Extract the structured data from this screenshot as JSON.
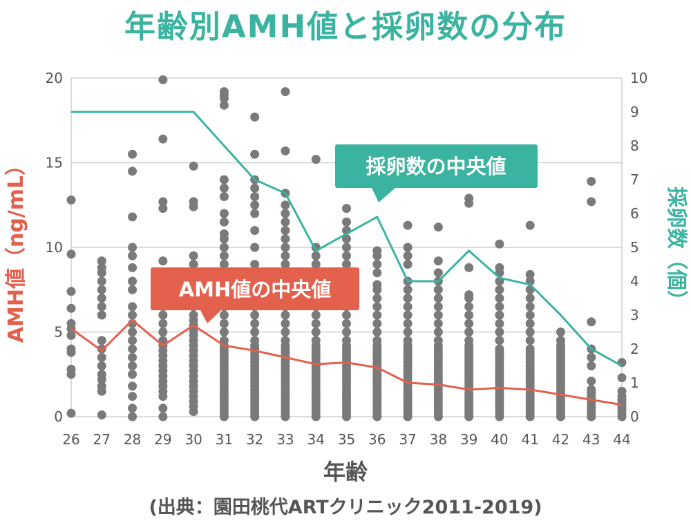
{
  "title": "年齢別AMH値と採卵数の分布",
  "source": "(出典：園田桃代ARTクリニック2011-2019)",
  "colors": {
    "title": "#3ab3a0",
    "amh": "#e3604d",
    "eggs": "#3ab3a0",
    "dots": "#7a7a7a",
    "grid": "#cfcfcf"
  },
  "chart_data": {
    "type": "scatter",
    "title": "年齢別AMH値と採卵数の分布",
    "xlabel": "年齢",
    "ylabel": "AMH値（ng/mL）",
    "y2label": "採卵数（個）",
    "x_ticks": [
      "26",
      "27",
      "28",
      "29",
      "30",
      "31",
      "32",
      "33",
      "34",
      "35",
      "36",
      "37",
      "38",
      "39",
      "40",
      "41",
      "42",
      "43",
      "44"
    ],
    "y_ticks": [
      "0",
      "5",
      "10",
      "15",
      "20"
    ],
    "y2_ticks": [
      "0",
      "1",
      "2",
      "3",
      "4",
      "5",
      "6",
      "7",
      "8",
      "9",
      "10"
    ],
    "ylim": [
      0,
      20
    ],
    "y2lim": [
      0,
      10
    ],
    "grid": true,
    "series": [
      {
        "name": "AMH値の中央値",
        "type": "line",
        "axis": "left",
        "x": [
          26,
          27,
          28,
          29,
          30,
          31,
          32,
          33,
          34,
          35,
          36,
          37,
          38,
          39,
          40,
          41,
          42,
          43,
          44
        ],
        "values": [
          5.2,
          3.9,
          5.7,
          4.2,
          5.4,
          4.2,
          3.9,
          3.5,
          3.1,
          3.2,
          2.9,
          2.0,
          1.9,
          1.6,
          1.7,
          1.6,
          1.3,
          1.0,
          0.7
        ]
      },
      {
        "name": "採卵数の中央値",
        "type": "line",
        "axis": "right",
        "x": [
          26,
          27,
          28,
          29,
          30,
          31,
          32,
          33,
          34,
          35,
          36,
          37,
          38,
          39,
          40,
          41,
          42,
          43,
          44
        ],
        "values": [
          9,
          9,
          9,
          9,
          9,
          8,
          7,
          6.6,
          4.9,
          5.4,
          5.9,
          4,
          4,
          4.9,
          4.1,
          3.9,
          3,
          2,
          1.5
        ]
      },
      {
        "name": "",
        "type": "scatter",
        "axis": "left",
        "points": [
          {
            "age": 26,
            "vals": [
              0.2,
              2.5,
              2.8,
              3.8,
              4,
              4.8,
              5.2,
              5.5,
              6.4,
              7.4,
              9.6,
              12.8
            ]
          },
          {
            "age": 27,
            "vals": [
              0.1,
              1.5,
              1.8,
              2.2,
              2.5,
              3,
              3.5,
              4,
              4.5,
              6,
              6.5,
              7,
              7.5,
              8,
              8.5,
              8.8,
              9.2
            ]
          },
          {
            "age": 28,
            "vals": [
              0,
              0.5,
              1.2,
              1.8,
              2.5,
              3,
              3.5,
              4,
              4.5,
              5,
              5.5,
              6,
              6.5,
              7.5,
              8,
              8.8,
              9.5,
              10,
              11.8,
              14.5,
              15.5
            ]
          },
          {
            "age": 29,
            "vals": [
              0,
              0.5,
              1.2,
              1.5,
              1.8,
              2.1,
              2.4,
              2.7,
              3,
              3.3,
              3.6,
              3.9,
              4.2,
              4.5,
              5,
              5.5,
              6,
              6.5,
              8,
              9.2,
              12.3,
              12.7,
              16.4,
              19.9
            ]
          },
          {
            "age": 30,
            "vals": [
              0.3,
              0.6,
              0.9,
              1.2,
              1.5,
              1.8,
              2.1,
              2.4,
              2.7,
              3,
              3.3,
              3.6,
              3.9,
              4.2,
              4.5,
              4.8,
              5.1,
              5.4,
              5.7,
              6,
              6.5,
              7,
              7.5,
              8,
              9,
              9.5,
              12.4,
              12.7,
              14.8
            ]
          },
          {
            "age": 31,
            "vals": [
              0,
              0.2,
              0.4,
              0.6,
              0.8,
              1,
              1.2,
              1.4,
              1.6,
              1.8,
              2,
              2.2,
              2.4,
              2.6,
              2.8,
              3,
              3.2,
              3.4,
              3.6,
              3.8,
              4,
              4.2,
              4.5,
              5,
              5.5,
              6,
              6.5,
              7,
              7.5,
              8,
              8.5,
              9,
              9.5,
              10,
              10.5,
              10.8,
              11.5,
              12,
              13,
              13.5,
              14,
              18.4,
              18.8,
              19,
              19.2
            ]
          },
          {
            "age": 32,
            "vals": [
              0,
              0.2,
              0.4,
              0.6,
              0.8,
              1,
              1.2,
              1.4,
              1.6,
              1.8,
              2,
              2.2,
              2.4,
              2.6,
              2.8,
              3,
              3.2,
              3.4,
              3.6,
              3.8,
              4,
              4.2,
              4.5,
              5,
              5.5,
              6,
              6.5,
              7,
              7.5,
              8,
              8.5,
              9,
              10,
              11,
              12,
              12.5,
              13,
              13.5,
              14,
              15.5,
              17.7
            ]
          },
          {
            "age": 33,
            "vals": [
              0,
              0.2,
              0.4,
              0.6,
              0.8,
              1,
              1.2,
              1.4,
              1.6,
              1.8,
              2,
              2.2,
              2.4,
              2.6,
              2.8,
              3,
              3.2,
              3.4,
              3.6,
              3.8,
              4,
              4.2,
              4.5,
              5,
              5.5,
              6,
              6.5,
              7,
              7.5,
              8,
              8.5,
              9,
              9.5,
              10,
              10.5,
              11,
              11.5,
              12,
              12.5,
              13.2,
              15.7,
              19.2
            ]
          },
          {
            "age": 34,
            "vals": [
              0,
              0.2,
              0.4,
              0.6,
              0.8,
              1,
              1.2,
              1.4,
              1.6,
              1.8,
              2,
              2.2,
              2.4,
              2.6,
              2.8,
              3,
              3.2,
              3.4,
              3.6,
              3.8,
              4,
              4.2,
              4.5,
              5,
              5.5,
              6,
              6.5,
              7,
              7.5,
              8,
              8.5,
              9,
              9.5,
              10,
              15.2
            ]
          },
          {
            "age": 35,
            "vals": [
              0,
              0.2,
              0.4,
              0.6,
              0.8,
              1,
              1.2,
              1.4,
              1.6,
              1.8,
              2,
              2.2,
              2.4,
              2.6,
              2.8,
              3,
              3.2,
              3.4,
              3.6,
              3.8,
              4,
              4.2,
              4.5,
              5,
              5.5,
              6,
              6.5,
              7,
              7.5,
              8,
              8.5,
              9,
              9.5,
              10,
              10.5,
              11,
              11.5,
              12.3
            ]
          },
          {
            "age": 36,
            "vals": [
              0,
              0.2,
              0.4,
              0.6,
              0.8,
              1,
              1.2,
              1.4,
              1.6,
              1.8,
              2,
              2.2,
              2.4,
              2.6,
              2.8,
              3,
              3.2,
              3.4,
              3.6,
              3.8,
              4,
              4.2,
              4.5,
              5,
              5.5,
              6,
              6.5,
              7,
              7.5,
              7.8,
              8.5,
              9,
              9.5,
              9.8
            ]
          },
          {
            "age": 37,
            "vals": [
              0,
              0.2,
              0.4,
              0.6,
              0.8,
              1,
              1.2,
              1.4,
              1.6,
              1.8,
              2,
              2.2,
              2.4,
              2.6,
              2.8,
              3,
              3.2,
              3.4,
              3.6,
              3.8,
              4,
              4.2,
              4.5,
              5,
              5.5,
              6,
              6.5,
              7,
              7.5,
              8,
              9,
              9.5,
              10,
              11.3
            ]
          },
          {
            "age": 38,
            "vals": [
              0,
              0.2,
              0.4,
              0.6,
              0.8,
              1,
              1.2,
              1.4,
              1.6,
              1.8,
              2,
              2.2,
              2.4,
              2.6,
              2.8,
              3,
              3.2,
              3.4,
              3.6,
              3.8,
              4,
              4.2,
              4.5,
              5,
              5.5,
              6,
              6.5,
              7,
              7.5,
              8,
              8.5,
              9.2,
              11.2
            ]
          },
          {
            "age": 39,
            "vals": [
              0,
              0.2,
              0.4,
              0.6,
              0.8,
              1,
              1.2,
              1.4,
              1.6,
              1.8,
              2,
              2.2,
              2.4,
              2.6,
              2.8,
              3,
              3.2,
              3.4,
              3.6,
              3.8,
              4,
              4.2,
              4.5,
              5,
              5.5,
              6,
              6.5,
              7,
              7.2,
              8.8,
              12.6,
              12.9
            ]
          },
          {
            "age": 40,
            "vals": [
              0,
              0.2,
              0.4,
              0.6,
              0.8,
              1,
              1.2,
              1.4,
              1.6,
              1.8,
              2,
              2.2,
              2.4,
              2.6,
              2.8,
              3,
              3.2,
              3.4,
              3.6,
              3.8,
              4,
              4.5,
              5,
              5.5,
              6,
              6.5,
              7,
              7.5,
              8,
              8.5,
              8.8,
              10.2
            ]
          },
          {
            "age": 41,
            "vals": [
              0,
              0.2,
              0.4,
              0.6,
              0.8,
              1,
              1.2,
              1.4,
              1.6,
              1.8,
              2,
              2.2,
              2.4,
              2.6,
              2.8,
              3,
              3.2,
              3.4,
              3.6,
              3.8,
              4,
              4.5,
              5,
              5.5,
              6,
              6.5,
              7,
              7.5,
              8,
              8.4,
              11.3
            ]
          },
          {
            "age": 42,
            "vals": [
              0,
              0.2,
              0.4,
              0.6,
              0.8,
              1,
              1.2,
              1.4,
              1.6,
              1.8,
              2,
              2.2,
              2.4,
              2.6,
              2.8,
              3,
              3.2,
              3.4,
              3.6,
              3.8,
              4,
              4.2,
              4.5,
              5
            ]
          },
          {
            "age": 43,
            "vals": [
              0,
              0.2,
              0.4,
              0.6,
              0.8,
              1,
              1.2,
              1.4,
              1.6,
              2.1,
              3,
              3.5,
              4,
              5.6,
              12.7,
              13.9
            ]
          },
          {
            "age": 44,
            "vals": [
              0,
              0.2,
              0.4,
              0.6,
              0.8,
              1,
              1.2,
              1.5,
              2.3,
              3.2
            ]
          }
        ]
      }
    ],
    "annotations": [
      "AMH値の中央値",
      "採卵数の中央値"
    ]
  }
}
